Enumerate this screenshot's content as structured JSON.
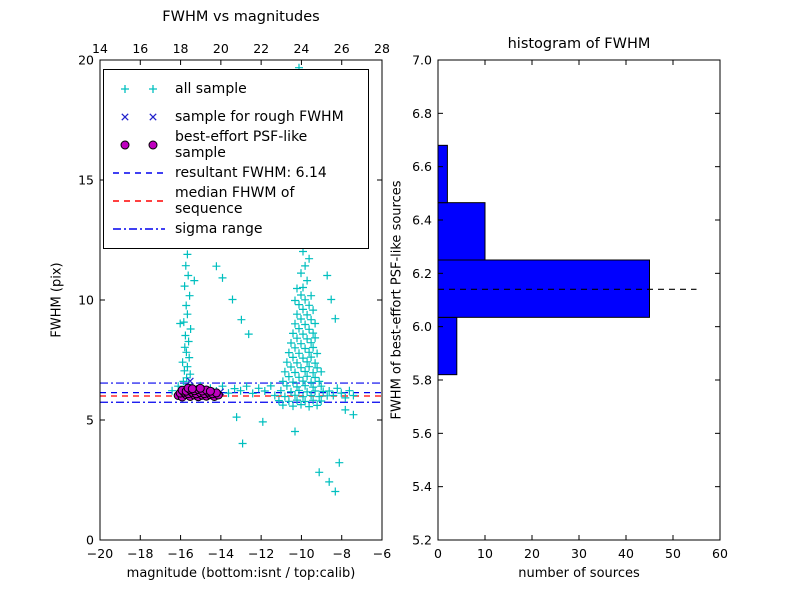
{
  "figure": {
    "background": "#ffffff"
  },
  "chart_data": [
    {
      "type": "scatter",
      "title": "FWHM vs magnitudes",
      "xlabel": "magnitude (bottom:isnt / top:calib)",
      "ylabel": "FWHM (pix)",
      "xlim": [
        -20,
        -6
      ],
      "ylim": [
        0,
        20
      ],
      "xticks": [
        -20,
        -18,
        -16,
        -14,
        -12,
        -10,
        -8,
        -6
      ],
      "xtick_labels": [
        "−20",
        "−18",
        "−16",
        "−14",
        "−12",
        "−10",
        "−8",
        "−6"
      ],
      "yticks": [
        0,
        5,
        10,
        15,
        20
      ],
      "ytick_labels": [
        "0",
        "5",
        "10",
        "15",
        "20"
      ],
      "top_axis": {
        "lim": [
          14,
          28
        ],
        "ticks": [
          14,
          16,
          18,
          20,
          22,
          24,
          26,
          28
        ],
        "labels": [
          "14",
          "16",
          "18",
          "20",
          "22",
          "24",
          "26",
          "28"
        ]
      },
      "series": [
        {
          "name": "all sample",
          "marker": "plus",
          "color": "#00bfbf",
          "points": [
            [
              -15.74,
              6.32
            ],
            [
              -15.61,
              6.48
            ],
            [
              -15.86,
              6.61
            ],
            [
              -15.7,
              6.76
            ],
            [
              -15.52,
              6.91
            ],
            [
              -15.81,
              7.05
            ],
            [
              -15.66,
              7.22
            ],
            [
              -15.9,
              7.41
            ],
            [
              -15.57,
              7.6
            ],
            [
              -15.71,
              7.82
            ],
            [
              -15.79,
              8.03
            ],
            [
              -15.6,
              8.27
            ],
            [
              -15.76,
              8.52
            ],
            [
              -15.5,
              8.79
            ],
            [
              -15.84,
              9.08
            ],
            [
              -15.66,
              9.41
            ],
            [
              -15.72,
              9.77
            ],
            [
              -15.55,
              10.18
            ],
            [
              -15.8,
              10.58
            ],
            [
              -15.62,
              11.02
            ],
            [
              -15.74,
              11.43
            ],
            [
              -15.66,
              11.9
            ],
            [
              -15.7,
              12.38
            ],
            [
              -15.52,
              12.62
            ],
            [
              -16.02,
              9.02
            ],
            [
              -15.32,
              10.81
            ],
            [
              -14.22,
              11.41
            ],
            [
              -13.92,
              10.92
            ],
            [
              -13.42,
              10.02
            ],
            [
              -12.98,
              9.18
            ],
            [
              -12.62,
              8.58
            ],
            [
              -11.82,
              18.62
            ],
            [
              -11.45,
              19.02
            ],
            [
              -11.62,
              19.42
            ],
            [
              -10.12,
              19.68
            ],
            [
              -9.82,
              19.32
            ],
            [
              -9.42,
              15.21
            ],
            [
              -9.72,
              14.62
            ],
            [
              -10.02,
              14.02
            ],
            [
              -9.22,
              13.82
            ],
            [
              -9.92,
              13.22
            ],
            [
              -9.52,
              12.92
            ],
            [
              -10.92,
              5.62
            ],
            [
              -10.42,
              5.58
            ],
            [
              -10.02,
              5.64
            ],
            [
              -9.62,
              5.56
            ],
            [
              -9.22,
              5.61
            ],
            [
              -11.12,
              5.81
            ],
            [
              -10.62,
              5.78
            ],
            [
              -10.22,
              5.83
            ],
            [
              -9.82,
              5.77
            ],
            [
              -9.42,
              5.82
            ],
            [
              -9.02,
              5.79
            ],
            [
              -11.32,
              6.02
            ],
            [
              -10.82,
              5.98
            ],
            [
              -10.32,
              6.03
            ],
            [
              -9.92,
              5.97
            ],
            [
              -9.52,
              6.02
            ],
            [
              -9.12,
              5.98
            ],
            [
              -8.72,
              6.01
            ],
            [
              -11.02,
              6.22
            ],
            [
              -10.52,
              6.18
            ],
            [
              -10.12,
              6.23
            ],
            [
              -9.72,
              6.17
            ],
            [
              -9.32,
              6.21
            ],
            [
              -8.92,
              6.19
            ],
            [
              -10.72,
              6.42
            ],
            [
              -10.22,
              6.38
            ],
            [
              -9.82,
              6.43
            ],
            [
              -9.42,
              6.37
            ],
            [
              -9.02,
              6.41
            ],
            [
              -10.92,
              6.61
            ],
            [
              -10.42,
              6.58
            ],
            [
              -9.92,
              6.62
            ],
            [
              -9.52,
              6.57
            ],
            [
              -9.12,
              6.61
            ],
            [
              -10.62,
              6.81
            ],
            [
              -10.12,
              6.78
            ],
            [
              -9.72,
              6.82
            ],
            [
              -9.32,
              6.77
            ],
            [
              -10.82,
              7.01
            ],
            [
              -10.32,
              6.98
            ],
            [
              -9.82,
              7.02
            ],
            [
              -9.42,
              6.97
            ],
            [
              -9.02,
              7.01
            ],
            [
              -10.52,
              7.21
            ],
            [
              -10.02,
              7.18
            ],
            [
              -9.62,
              7.22
            ],
            [
              -9.22,
              7.17
            ],
            [
              -10.72,
              7.41
            ],
            [
              -10.22,
              7.38
            ],
            [
              -9.72,
              7.42
            ],
            [
              -9.32,
              7.37
            ],
            [
              -10.42,
              7.61
            ],
            [
              -9.92,
              7.58
            ],
            [
              -9.52,
              7.62
            ],
            [
              -10.62,
              7.81
            ],
            [
              -10.12,
              7.78
            ],
            [
              -9.62,
              7.82
            ],
            [
              -9.22,
              7.77
            ],
            [
              -10.32,
              8.01
            ],
            [
              -9.82,
              7.98
            ],
            [
              -9.42,
              8.02
            ],
            [
              -10.52,
              8.21
            ],
            [
              -10.02,
              8.18
            ],
            [
              -9.52,
              8.22
            ],
            [
              -10.22,
              8.41
            ],
            [
              -9.72,
              8.38
            ],
            [
              -9.32,
              8.42
            ],
            [
              -10.42,
              8.61
            ],
            [
              -9.92,
              8.58
            ],
            [
              -9.42,
              8.62
            ],
            [
              -10.12,
              8.81
            ],
            [
              -9.62,
              8.78
            ],
            [
              -10.32,
              9.01
            ],
            [
              -9.82,
              8.98
            ],
            [
              -9.32,
              9.02
            ],
            [
              -10.02,
              9.21
            ],
            [
              -9.52,
              9.18
            ],
            [
              -10.22,
              9.41
            ],
            [
              -9.72,
              9.38
            ],
            [
              -9.92,
              9.61
            ],
            [
              -9.42,
              9.58
            ],
            [
              -10.12,
              9.81
            ],
            [
              -9.62,
              9.78
            ],
            [
              -9.82,
              10.01
            ],
            [
              -10.32,
              9.98
            ],
            [
              -10.02,
              10.21
            ],
            [
              -9.52,
              10.18
            ],
            [
              -9.92,
              10.52
            ],
            [
              -10.22,
              10.48
            ],
            [
              -9.72,
              10.81
            ],
            [
              -10.02,
              11.12
            ],
            [
              -9.82,
              11.42
            ],
            [
              -9.62,
              11.72
            ],
            [
              -9.92,
              12.02
            ],
            [
              -9.72,
              12.32
            ],
            [
              -8.52,
              10.02
            ],
            [
              -8.32,
              9.22
            ],
            [
              -8.72,
              11.02
            ],
            [
              -16.42,
              6.22
            ],
            [
              -16.12,
              6.41
            ],
            [
              -15.92,
              6.12
            ],
            [
              -15.62,
              6.31
            ],
            [
              -15.32,
              6.21
            ],
            [
              -15.02,
              6.42
            ],
            [
              -14.82,
              6.11
            ],
            [
              -14.52,
              6.32
            ],
            [
              -14.22,
              6.21
            ],
            [
              -13.92,
              6.41
            ],
            [
              -13.62,
              6.12
            ],
            [
              -13.32,
              6.31
            ],
            [
              -13.02,
              6.22
            ],
            [
              -12.72,
              6.41
            ],
            [
              -12.42,
              6.11
            ],
            [
              -12.12,
              6.32
            ],
            [
              -11.82,
              6.21
            ],
            [
              -11.52,
              6.42
            ],
            [
              -8.62,
              6.21
            ],
            [
              -8.42,
              6.02
            ],
            [
              -8.22,
              6.32
            ],
            [
              -8.02,
              6.12
            ],
            [
              -7.82,
              5.92
            ],
            [
              -7.62,
              6.22
            ],
            [
              -7.42,
              6.02
            ],
            [
              -12.92,
              4.02
            ],
            [
              -10.32,
              4.52
            ],
            [
              -8.62,
              2.42
            ],
            [
              -8.12,
              3.22
            ],
            [
              -9.12,
              2.82
            ],
            [
              -8.32,
              2.02
            ],
            [
              -7.42,
              5.22
            ],
            [
              -11.92,
              4.92
            ],
            [
              -13.22,
              5.12
            ],
            [
              -7.82,
              5.42
            ]
          ]
        },
        {
          "name": "sample for rough FWHM",
          "marker": "x",
          "color": "#2222cc",
          "points": [
            [
              -15.52,
              6.62
            ],
            [
              -15.22,
              6.27
            ],
            [
              -14.92,
              6.17
            ],
            [
              -14.62,
              6.22
            ],
            [
              -15.02,
              6.07
            ],
            [
              -14.32,
              6.12
            ],
            [
              -15.62,
              6.32
            ],
            [
              -14.02,
              6.17
            ]
          ]
        },
        {
          "name": "best-effort PSF-like sample",
          "marker": "circle",
          "color": "#bf00bf",
          "edge": "#000000",
          "points": [
            [
              -16.12,
              6.02
            ],
            [
              -15.92,
              5.96
            ],
            [
              -15.72,
              6.06
            ],
            [
              -15.52,
              5.98
            ],
            [
              -15.32,
              6.04
            ],
            [
              -15.12,
              5.97
            ],
            [
              -14.92,
              6.03
            ],
            [
              -14.72,
              5.99
            ],
            [
              -14.52,
              6.05
            ],
            [
              -14.32,
              5.98
            ],
            [
              -14.12,
              6.04
            ],
            [
              -16.02,
              6.12
            ],
            [
              -15.82,
              6.16
            ],
            [
              -15.62,
              6.1
            ],
            [
              -15.42,
              6.15
            ],
            [
              -15.22,
              6.09
            ],
            [
              -15.02,
              6.14
            ],
            [
              -14.82,
              6.1
            ],
            [
              -14.62,
              6.16
            ],
            [
              -14.42,
              6.09
            ],
            [
              -14.22,
              6.13
            ],
            [
              -15.92,
              6.24
            ],
            [
              -15.72,
              6.2
            ],
            [
              -15.52,
              6.26
            ],
            [
              -15.32,
              6.22
            ],
            [
              -15.12,
              6.27
            ],
            [
              -14.92,
              6.21
            ],
            [
              -14.72,
              6.25
            ],
            [
              -14.52,
              6.2
            ],
            [
              -15.62,
              6.33
            ],
            [
              -15.42,
              6.3
            ],
            [
              -15.02,
              6.32
            ]
          ]
        }
      ],
      "lines": [
        {
          "name": "resultant FWHM",
          "y": 6.14,
          "color": "#0000ee",
          "style": "dashed"
        },
        {
          "name": "median FHWM of sequence",
          "y": 6.0,
          "color": "#ff0000",
          "style": "dashed"
        },
        {
          "name": "sigma range upper",
          "y": 6.54,
          "color": "#0000ee",
          "style": "dashdot"
        },
        {
          "name": "sigma range lower",
          "y": 5.74,
          "color": "#0000ee",
          "style": "dashdot"
        }
      ],
      "legend": {
        "items": [
          {
            "label": "all sample",
            "type": "scatter",
            "marker": "plus",
            "color": "#00bfbf"
          },
          {
            "label": "sample for rough FWHM",
            "type": "scatter",
            "marker": "x",
            "color": "#2222cc"
          },
          {
            "label": "best-effort PSF-like sample",
            "type": "scatter",
            "marker": "circle",
            "color": "#bf00bf",
            "edge": "#000000"
          },
          {
            "label": "resultant FWHM: 6.14",
            "type": "line",
            "style": "dashed",
            "color": "#0000ee"
          },
          {
            "label": "median FHWM of sequence",
            "type": "line",
            "style": "dashed",
            "color": "#ff0000"
          },
          {
            "label": "sigma range",
            "type": "line",
            "style": "dashdot",
            "color": "#0000ee"
          }
        ]
      }
    },
    {
      "type": "bar",
      "orientation": "horizontal",
      "title": "histogram of FWHM",
      "xlabel": "number of sources",
      "ylabel": "FWHM of best-effort PSF-like sources",
      "xlim": [
        0,
        60
      ],
      "ylim": [
        5.2,
        7.0
      ],
      "xticks": [
        0,
        10,
        20,
        30,
        40,
        50,
        60
      ],
      "xtick_labels": [
        "0",
        "10",
        "20",
        "30",
        "40",
        "50",
        "60"
      ],
      "yticks": [
        5.2,
        5.4,
        5.6,
        5.8,
        6.0,
        6.2,
        6.4,
        6.6,
        6.8,
        7.0
      ],
      "ytick_labels": [
        "5.2",
        "5.4",
        "5.6",
        "5.8",
        "6.0",
        "6.2",
        "6.4",
        "6.6",
        "6.8",
        "7.0"
      ],
      "bar_color": "#0000ff",
      "bar_edge": "#000000",
      "bins": [
        {
          "from": 5.82,
          "to": 6.035,
          "count": 4
        },
        {
          "from": 6.035,
          "to": 6.25,
          "count": 45
        },
        {
          "from": 6.25,
          "to": 6.465,
          "count": 10
        },
        {
          "from": 6.465,
          "to": 6.68,
          "count": 2
        }
      ],
      "median_line": {
        "y": 6.14,
        "color": "#000000",
        "style": "dashed",
        "x_range": [
          0,
          55
        ]
      }
    }
  ]
}
